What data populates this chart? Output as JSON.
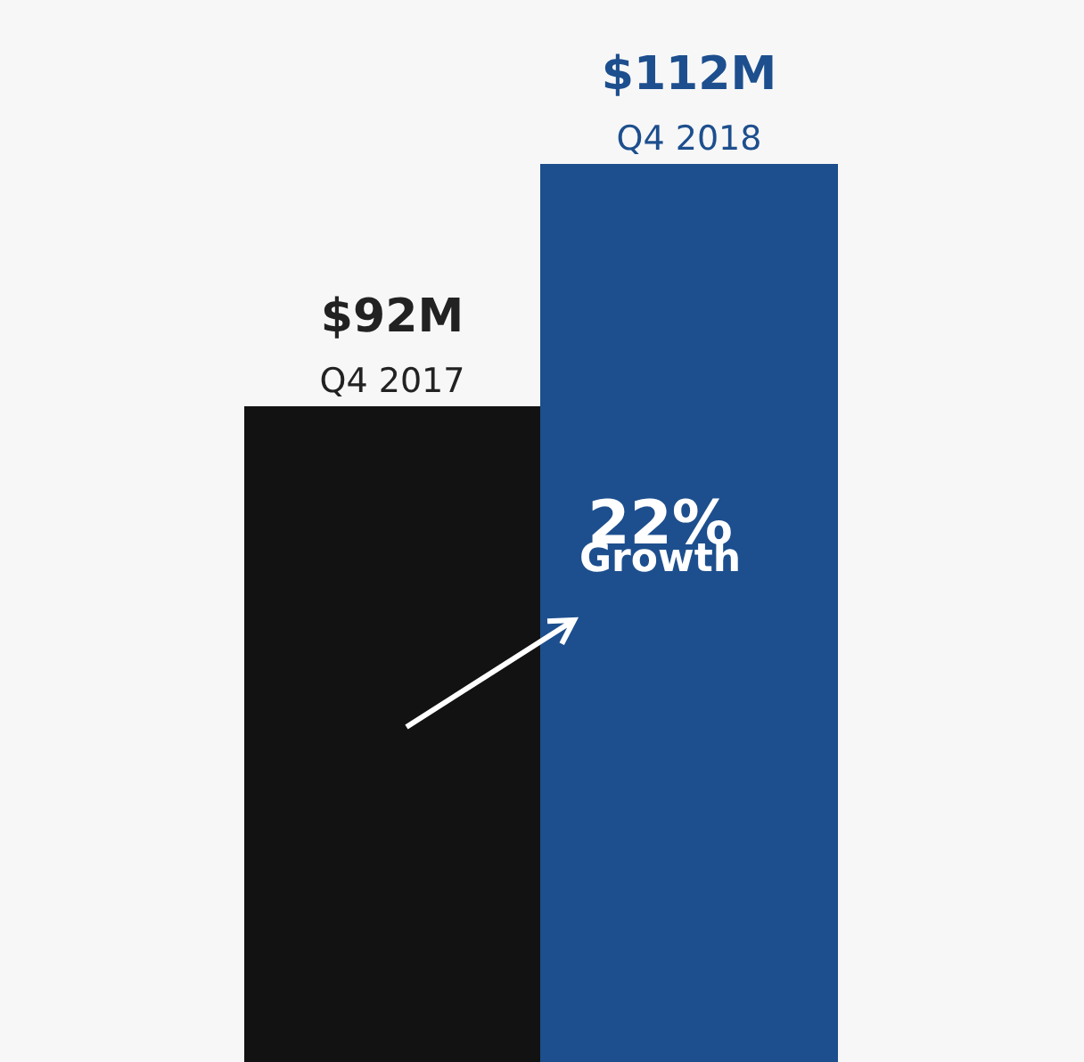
{
  "chart_data": {
    "type": "bar",
    "categories": [
      "Q4 2017",
      "Q4 2018"
    ],
    "values": [
      92,
      112
    ],
    "value_labels": [
      "$92M",
      "$112M"
    ],
    "colors": [
      "#121212",
      "#1d4f8e"
    ],
    "tick_labels": false,
    "grid": false,
    "annotations": [
      "22%\nGrowth"
    ]
  }
}
